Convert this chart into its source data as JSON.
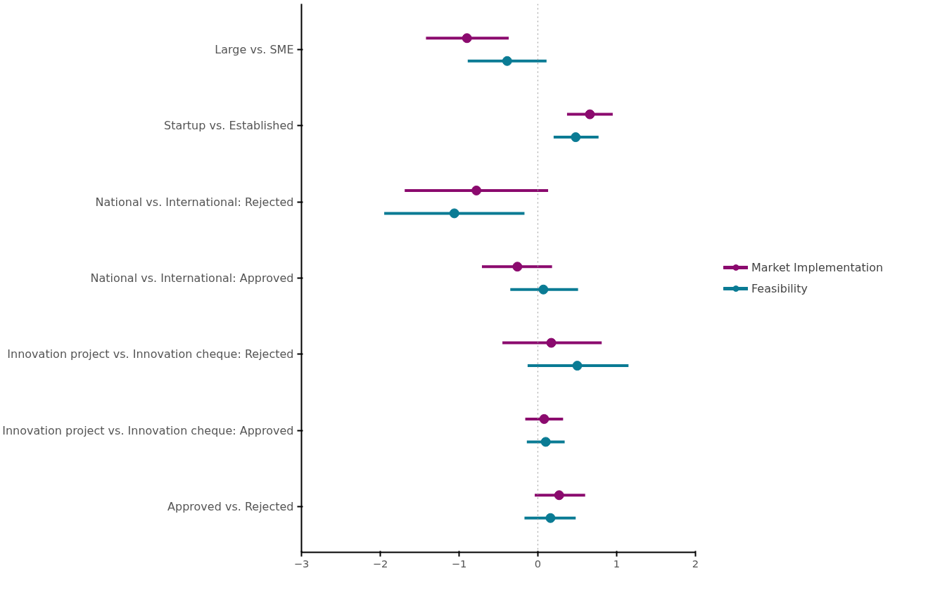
{
  "chart_data": {
    "type": "scatter",
    "orientation": "horizontal",
    "categories": [
      "Large vs. SME",
      "Startup vs. Established",
      "National vs. International: Rejected",
      "National vs. International: Approved",
      "Innovation project vs. Innovation cheque: Rejected",
      "Innovation project vs. Innovation cheque: Approved",
      "Approved vs. Rejected"
    ],
    "series": [
      {
        "name": "Market Implementation",
        "color": "#8b0a6e",
        "values": [
          -0.9,
          0.66,
          -0.78,
          -0.26,
          0.17,
          0.08,
          0.27
        ],
        "errors": [
          [
            -1.42,
            -0.37
          ],
          [
            0.37,
            0.95
          ],
          [
            -1.69,
            0.13
          ],
          [
            -0.71,
            0.18
          ],
          [
            -0.45,
            0.81
          ],
          [
            -0.16,
            0.32
          ],
          [
            -0.04,
            0.6
          ]
        ]
      },
      {
        "name": "Feasibility",
        "color": "#0a7b94",
        "values": [
          -0.39,
          0.48,
          -1.06,
          0.07,
          0.5,
          0.1,
          0.16
        ],
        "errors": [
          [
            -0.89,
            0.11
          ],
          [
            0.2,
            0.77
          ],
          [
            -1.95,
            -0.17
          ],
          [
            -0.35,
            0.51
          ],
          [
            -0.13,
            1.15
          ],
          [
            -0.14,
            0.34
          ],
          [
            -0.17,
            0.48
          ]
        ]
      }
    ],
    "xlim": [
      -3,
      2
    ],
    "xticks": [
      -3,
      -2,
      -1,
      0,
      1,
      2
    ],
    "ref_lines": [
      {
        "axis": "x",
        "value": 0,
        "color": "#999999",
        "line_style": "dotted"
      }
    ],
    "grid": false,
    "legend": "right",
    "marker": "circle",
    "line_style": "solid"
  }
}
